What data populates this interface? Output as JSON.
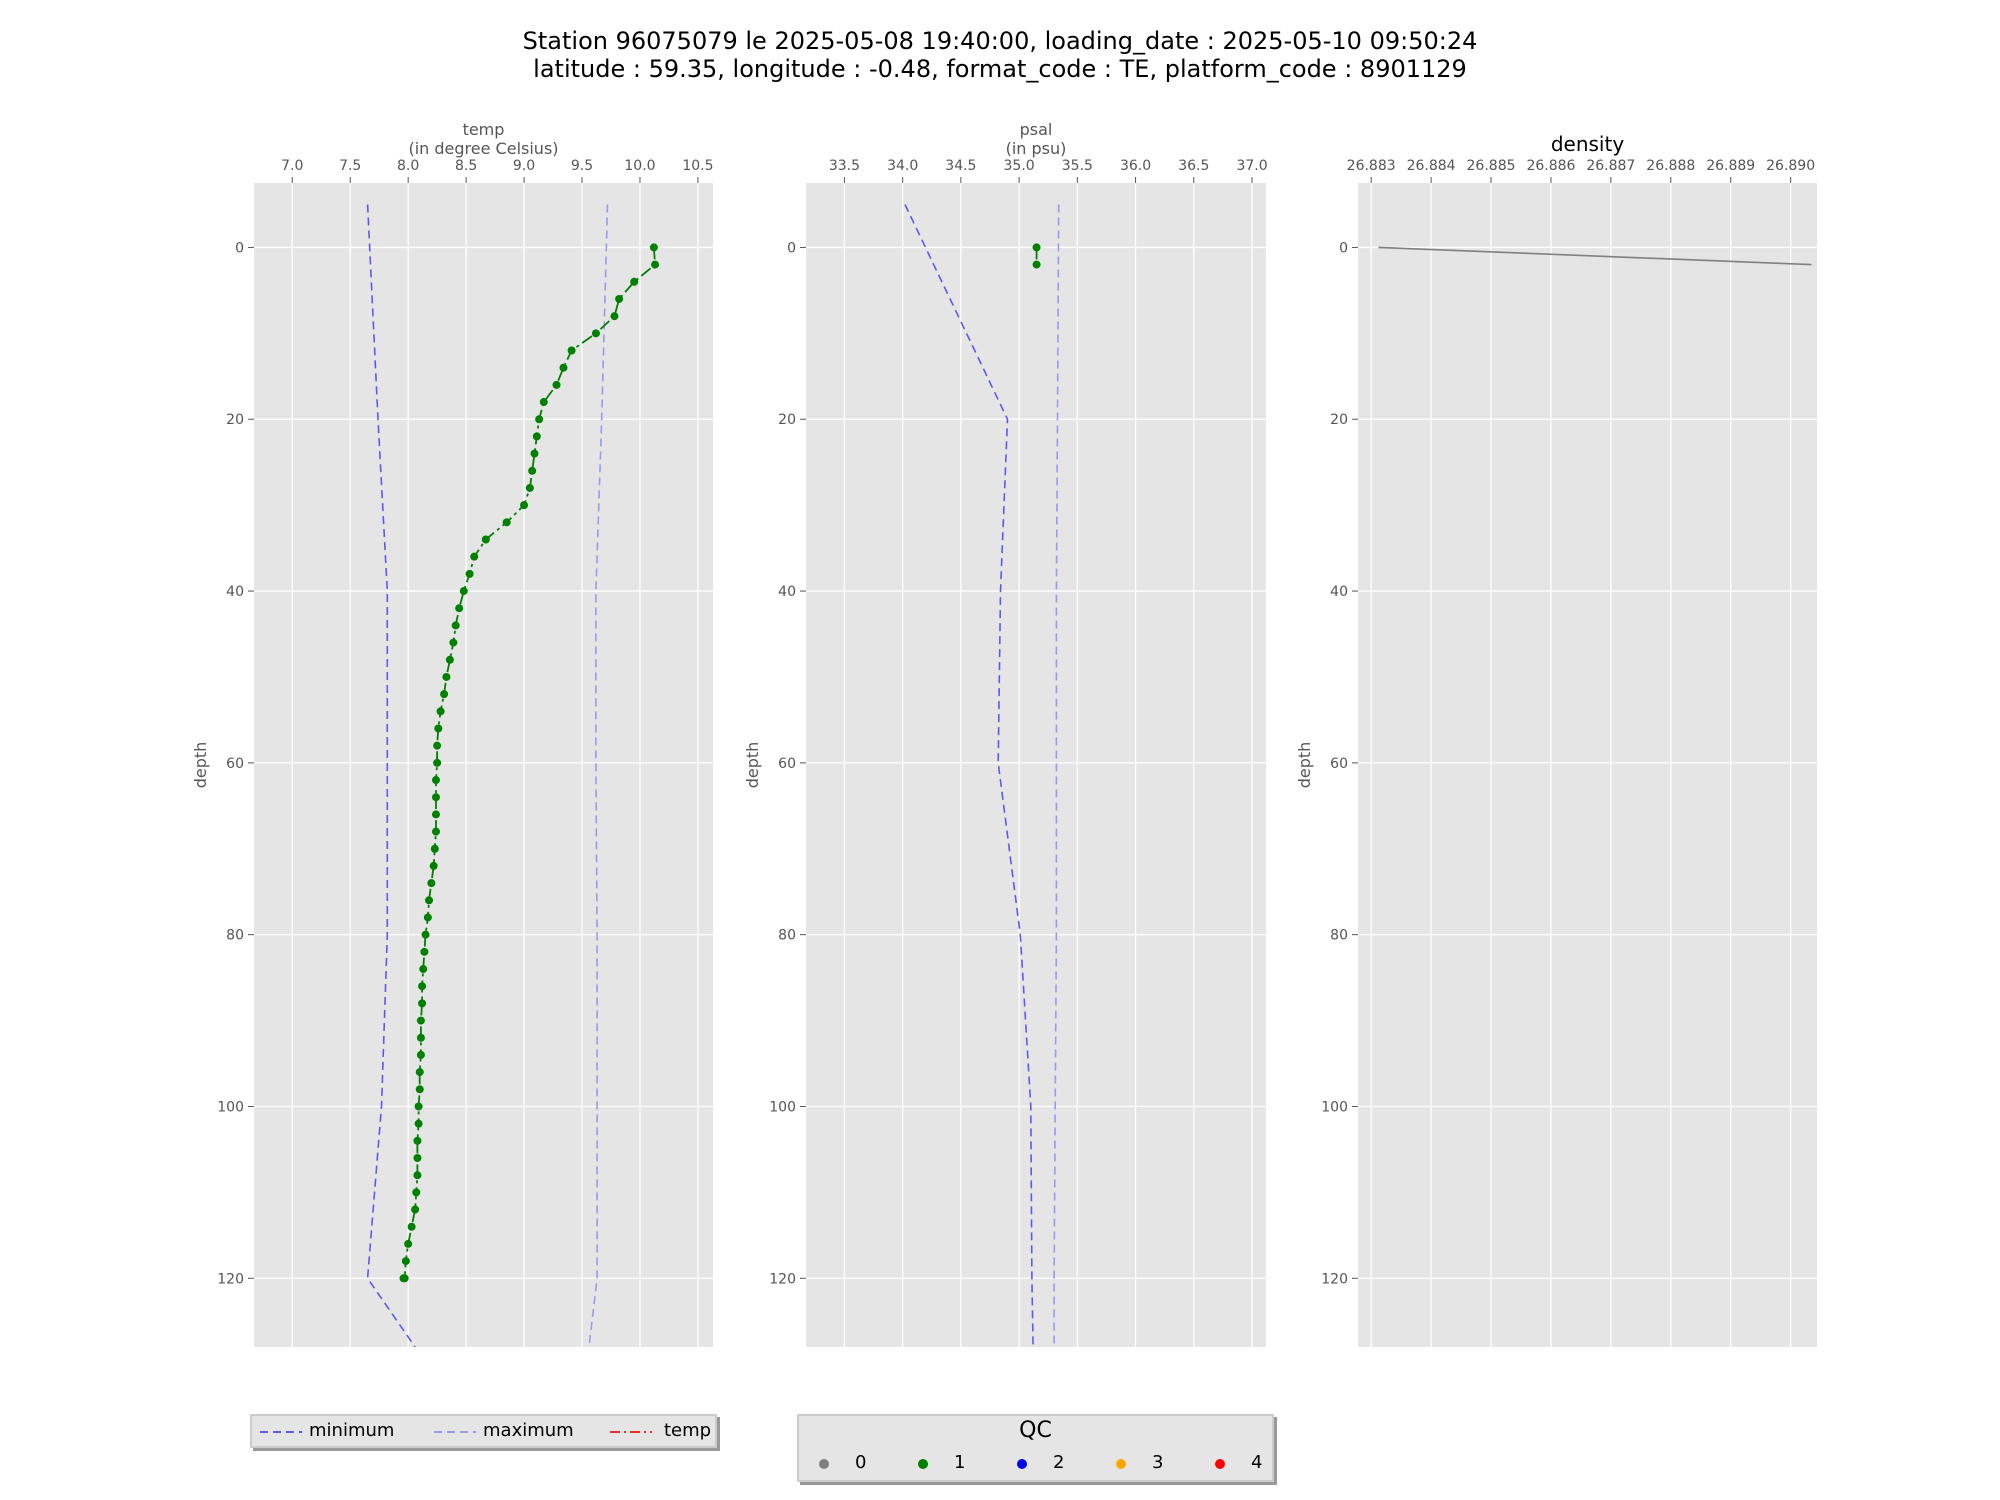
{
  "figure": {
    "title_line1": "Station 96075079 le 2025-05-08 19:40:00, loading_date : 2025-05-10 09:50:24",
    "title_line2": "latitude : 59.35, longitude : -0.48, format_code : TE, platform_code : 8901129"
  },
  "chart_data": [
    {
      "type": "line",
      "panel": "temp",
      "title": "",
      "xlabel": "temp\n(in degree Celsius)",
      "xaxis_position": "top",
      "ylabel": "depth",
      "yaxis_inverted": true,
      "xlim": [
        6.67,
        10.63
      ],
      "ylim": [
        128,
        -7.5
      ],
      "xticks": [
        "7.0",
        "7.5",
        "8.0",
        "8.5",
        "9.0",
        "9.5",
        "10.0",
        "10.5"
      ],
      "yticks": [
        "0",
        "20",
        "40",
        "60",
        "80",
        "100",
        "120"
      ],
      "grid": true,
      "series": [
        {
          "name": "minimum",
          "style": "dashed",
          "color": "#5b5bea",
          "x": [
            7.65,
            7.74,
            7.82,
            7.82,
            7.82,
            7.77,
            7.65,
            8.06
          ],
          "y": [
            -5,
            20,
            40,
            60,
            80,
            100,
            120,
            128
          ]
        },
        {
          "name": "maximum",
          "style": "dashed",
          "color": "#9999ee",
          "x": [
            9.72,
            9.67,
            9.62,
            9.62,
            9.63,
            9.63,
            9.63,
            9.56
          ],
          "y": [
            -5,
            20,
            40,
            60,
            80,
            100,
            120,
            128
          ]
        },
        {
          "name": "temp",
          "style": "dashdot",
          "color": "#008000",
          "qc": 1,
          "x": [
            10.12,
            10.13,
            9.95,
            9.82,
            9.78,
            9.62,
            9.41,
            9.34,
            9.28,
            9.17,
            9.13,
            9.11,
            9.09,
            9.07,
            9.05,
            9.0,
            8.85,
            8.67,
            8.57,
            8.53,
            8.48,
            8.44,
            8.41,
            8.39,
            8.36,
            8.33,
            8.31,
            8.28,
            8.26,
            8.25,
            8.25,
            8.24,
            8.24,
            8.24,
            8.24,
            8.23,
            8.22,
            8.2,
            8.18,
            8.17,
            8.15,
            8.14,
            8.13,
            8.12,
            8.12,
            8.11,
            8.11,
            8.11,
            8.1,
            8.1,
            8.09,
            8.09,
            8.08,
            8.08,
            8.08,
            8.07,
            8.06,
            8.03,
            8.0,
            7.98,
            7.97,
            7.96
          ],
          "y": [
            0,
            2,
            4,
            6,
            8,
            10,
            12,
            14,
            16,
            18,
            20,
            22,
            24,
            26,
            28,
            30,
            32,
            34,
            36,
            38,
            40,
            42,
            44,
            46,
            48,
            50,
            52,
            54,
            56,
            58,
            60,
            62,
            64,
            66,
            68,
            70,
            72,
            74,
            76,
            78,
            80,
            82,
            84,
            86,
            88,
            90,
            92,
            94,
            96,
            98,
            100,
            102,
            104,
            106,
            108,
            110,
            112,
            114,
            116,
            118,
            120,
            120
          ]
        }
      ]
    },
    {
      "type": "line",
      "panel": "psal",
      "title": "",
      "xlabel": "psal\n(in psu)",
      "xaxis_position": "top",
      "ylabel": "depth",
      "yaxis_inverted": true,
      "xlim": [
        33.17,
        37.12
      ],
      "ylim": [
        128,
        -7.5
      ],
      "xticks": [
        "33.5",
        "34.0",
        "34.5",
        "35.0",
        "35.5",
        "36.0",
        "36.5",
        "37.0"
      ],
      "yticks": [
        "0",
        "20",
        "40",
        "60",
        "80",
        "100",
        "120"
      ],
      "grid": true,
      "series": [
        {
          "name": "minimum",
          "style": "dashed",
          "color": "#5b5bea",
          "x": [
            34.02,
            34.9,
            34.84,
            34.82,
            35.01,
            35.1,
            35.11,
            35.12
          ],
          "y": [
            -5,
            20,
            40,
            60,
            80,
            100,
            120,
            128
          ]
        },
        {
          "name": "maximum",
          "style": "dashed",
          "color": "#9999ee",
          "x": [
            35.34,
            35.33,
            35.32,
            35.32,
            35.32,
            35.31,
            35.3,
            35.3
          ],
          "y": [
            -5,
            20,
            40,
            60,
            80,
            100,
            120,
            128
          ]
        },
        {
          "name": "psal",
          "style": "dashdot",
          "color": "#008000",
          "qc": 1,
          "x": [
            35.15,
            35.15
          ],
          "y": [
            0,
            2
          ]
        }
      ]
    },
    {
      "type": "line",
      "panel": "density",
      "title": "density",
      "xlabel": "",
      "xaxis_position": "top",
      "ylabel": "depth",
      "yaxis_inverted": true,
      "xlim": [
        26.88278,
        26.89044
      ],
      "ylim": [
        128,
        -7.5
      ],
      "xticks": [
        "26.883",
        "26.884",
        "26.885",
        "26.886",
        "26.887",
        "26.888",
        "26.889",
        "26.890"
      ],
      "yticks": [
        "0",
        "20",
        "40",
        "60",
        "80",
        "100",
        "120"
      ],
      "grid": true,
      "series": [
        {
          "name": "density",
          "style": "solid",
          "color": "#808080",
          "x": [
            26.88312,
            26.89035
          ],
          "y": [
            0,
            2
          ]
        }
      ]
    }
  ],
  "legend_lines": {
    "items": [
      {
        "label": "minimum",
        "color": "#5b5bea",
        "dash": "8,5"
      },
      {
        "label": "maximum",
        "color": "#9999ee",
        "dash": "8,5"
      },
      {
        "label": "temp",
        "color": "#e8312f",
        "dash": "10,4,2,4"
      }
    ]
  },
  "legend_qc": {
    "title": "QC",
    "items": [
      {
        "label": "0",
        "color": "#808080"
      },
      {
        "label": "1",
        "color": "#008000"
      },
      {
        "label": "2",
        "color": "#0000ff"
      },
      {
        "label": "3",
        "color": "#ffa500"
      },
      {
        "label": "4",
        "color": "#ff0000"
      }
    ]
  }
}
